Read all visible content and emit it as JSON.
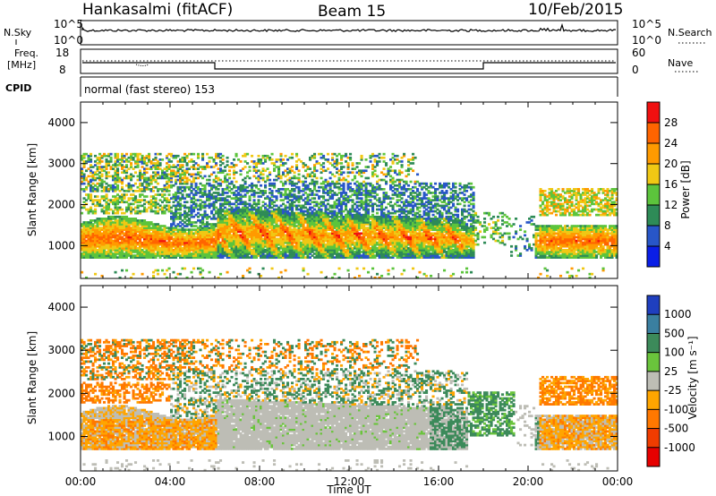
{
  "header": {
    "station": "Hankasalmi (fitACF)",
    "beam": "Beam 15",
    "date": "10/Feb/2015"
  },
  "noise_panel": {
    "left_label": "N.Sky",
    "right_label": "N.Search",
    "ticks_left": [
      "10^5",
      "10^0"
    ],
    "ticks_right": [
      "10^5",
      "10^0"
    ]
  },
  "freq_panel": {
    "left_label_line1": "Freq.",
    "left_label_line2": "[MHz]",
    "right_label": "Nave",
    "ticks_left": [
      "18",
      "8"
    ],
    "ticks_right": [
      "60",
      "0"
    ]
  },
  "cpid_panel": {
    "left_label": "CPID",
    "text": "normal (fast stereo) 153"
  },
  "chart_data": [
    {
      "type": "heatmap",
      "name_key": "power",
      "ylabel": "Slant Range [km]",
      "xlabel": "",
      "x_ticks": [
        "00:00",
        "04:00",
        "08:00",
        "12:00",
        "16:00",
        "20:00",
        "00:00"
      ],
      "y_ticks": [
        "1000",
        "2000",
        "3000",
        "4000"
      ],
      "ylim": [
        200,
        4500
      ],
      "xlim_hours": [
        0,
        24
      ],
      "colorbar": {
        "label": "Power [dB]",
        "ticks": [
          "4",
          "8",
          "12",
          "16",
          "20",
          "24",
          "28"
        ],
        "colors": [
          "#0a1ee6",
          "#2856c8",
          "#2e8b57",
          "#5cc43c",
          "#f0c814",
          "#ff9a00",
          "#ff6400",
          "#f01010"
        ]
      }
    },
    {
      "type": "heatmap",
      "name_key": "velocity",
      "ylabel": "Slant Range [km]",
      "xlabel": "Time UT",
      "x_ticks": [
        "00:00",
        "04:00",
        "08:00",
        "12:00",
        "16:00",
        "20:00",
        "00:00"
      ],
      "y_ticks": [
        "1000",
        "2000",
        "3000",
        "4000"
      ],
      "ylim": [
        200,
        4500
      ],
      "xlim_hours": [
        0,
        24
      ],
      "colorbar": {
        "label": "Velocity [m s⁻¹]",
        "ticks": [
          "1000",
          "500",
          "100",
          "25",
          "-25",
          "-100",
          "-500",
          "-1000"
        ],
        "colors": [
          "#1f3fbf",
          "#3a7fa0",
          "#3c8a5a",
          "#6ac43c",
          "#bdbdb5",
          "#ffa500",
          "#ff7800",
          "#f03c00",
          "#e60000"
        ]
      }
    }
  ]
}
